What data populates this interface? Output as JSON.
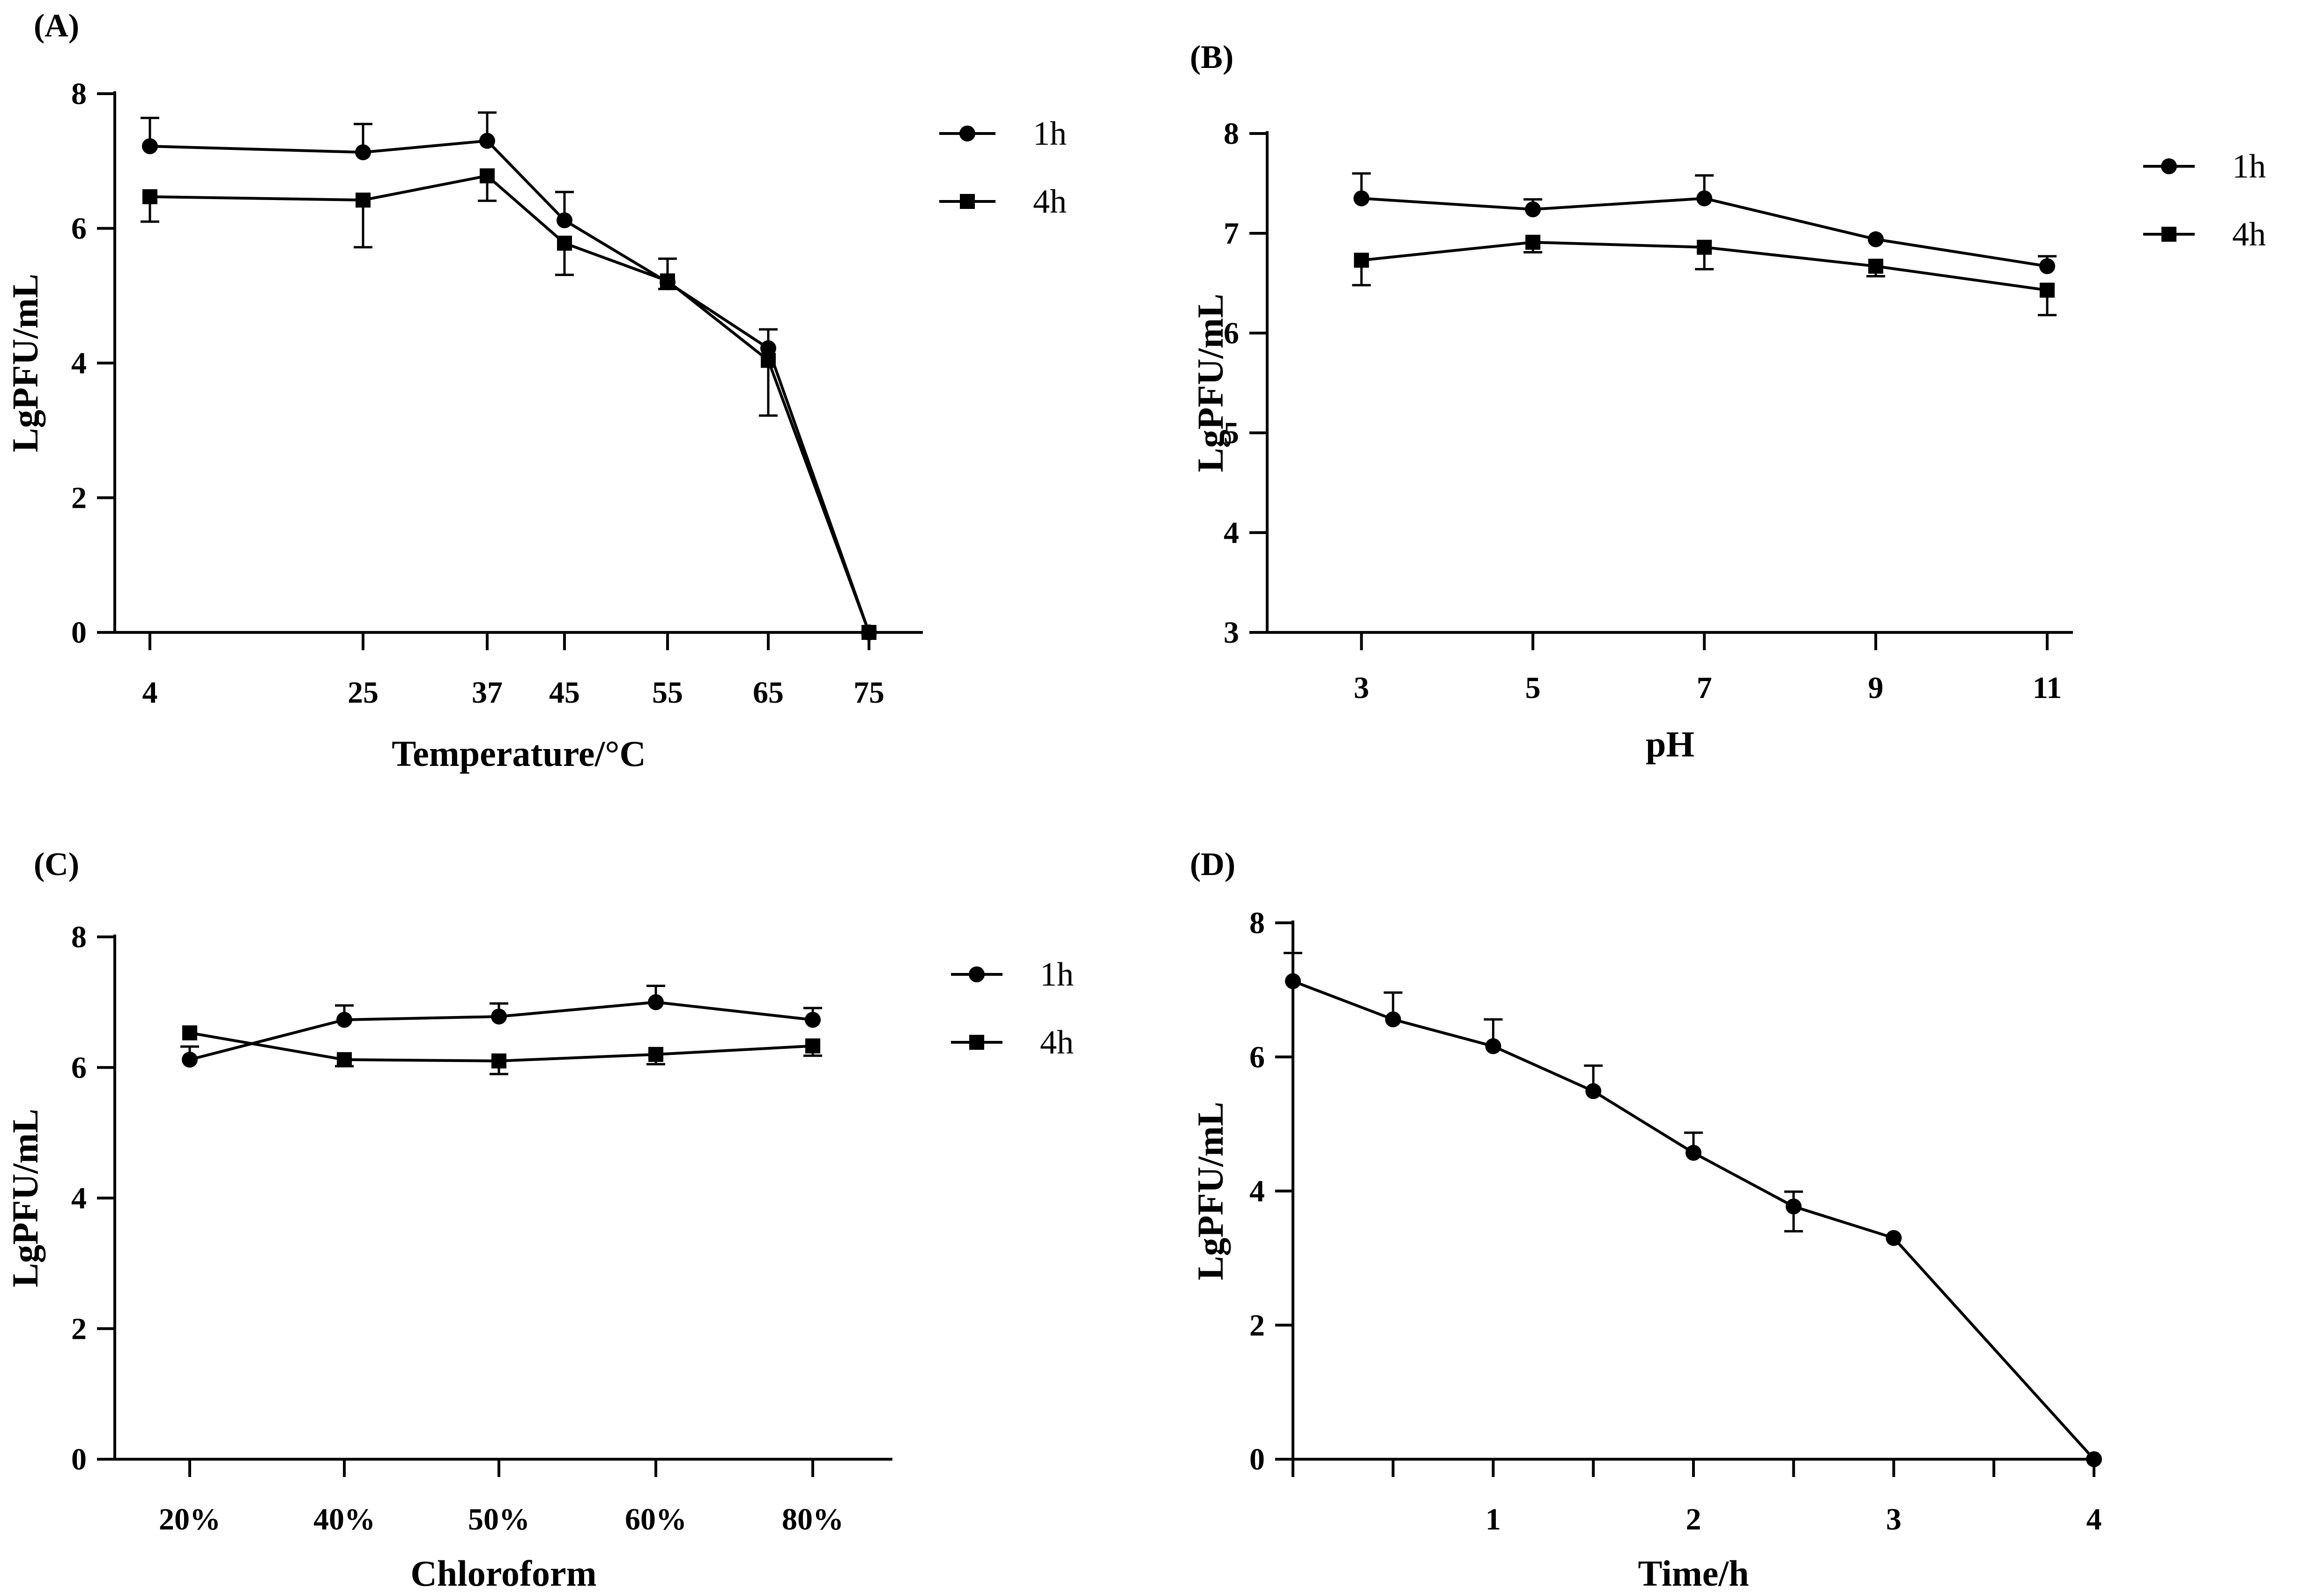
{
  "figure": {
    "panels": [
      {
        "label": "(A)"
      },
      {
        "label": "(B)"
      },
      {
        "label": "(C)"
      },
      {
        "label": "(D)"
      }
    ]
  },
  "chart_data": [
    {
      "type": "line",
      "panel": "(A)",
      "xlabel": "Temperature/°C",
      "ylabel": "LgPFU/mL",
      "x_scale": "categorical",
      "categories": [
        "4",
        "25",
        "37",
        "45",
        "55",
        "65",
        "75"
      ],
      "xlim": [
        -0.3,
        7.1
      ],
      "ylim": [
        0,
        8
      ],
      "yticks": [
        0,
        2,
        4,
        6,
        8
      ],
      "legend": "top-right",
      "series": [
        {
          "name": "1h",
          "marker": "circle",
          "values": [
            7.22,
            7.13,
            7.3,
            6.12,
            5.2,
            4.22,
            0.0
          ],
          "errors": [
            0.42,
            0.42,
            0.42,
            0.42,
            0.35,
            0.28,
            0.0
          ],
          "error_side": "up"
        },
        {
          "name": "4h",
          "marker": "square",
          "values": [
            6.47,
            6.42,
            6.78,
            5.78,
            5.22,
            4.04,
            0.0
          ],
          "errors": [
            0.37,
            0.7,
            0.37,
            0.47,
            0.12,
            0.82,
            0.0
          ],
          "error_side": "down"
        }
      ]
    },
    {
      "type": "line",
      "panel": "(B)",
      "xlabel": "pH",
      "ylabel": "LgPFU/mL",
      "x_scale": "linear",
      "x": [
        3,
        5,
        7,
        9,
        11
      ],
      "xticks": [
        3,
        5,
        7,
        9,
        11
      ],
      "xlim": [
        1.9,
        11.3
      ],
      "ylim": [
        3,
        8
      ],
      "yticks": [
        3,
        4,
        5,
        6,
        7,
        8
      ],
      "legend": "top-right",
      "series": [
        {
          "name": "1h",
          "marker": "circle",
          "values": [
            7.35,
            7.24,
            7.35,
            6.94,
            6.67
          ],
          "errors": [
            0.25,
            0.1,
            0.23,
            0.0,
            0.1
          ],
          "error_side": "up"
        },
        {
          "name": "4h",
          "marker": "square",
          "values": [
            6.73,
            6.91,
            6.86,
            6.67,
            6.43
          ],
          "errors": [
            0.25,
            0.1,
            0.22,
            0.1,
            0.25
          ],
          "error_side": "down"
        }
      ]
    },
    {
      "type": "line",
      "panel": "(C)",
      "xlabel": "Chloroform",
      "ylabel": "LgPFU/mL",
      "x_scale": "categorical",
      "categories": [
        "20%",
        "40%",
        "50%",
        "60%",
        "80%"
      ],
      "xlim": [
        -0.5,
        4.5
      ],
      "ylim": [
        0,
        8
      ],
      "yticks": [
        0,
        2,
        4,
        6,
        8
      ],
      "legend": "top-right",
      "series": [
        {
          "name": "1h",
          "marker": "circle",
          "values": [
            6.12,
            6.73,
            6.78,
            7.0,
            6.73
          ],
          "errors": [
            0.2,
            0.22,
            0.2,
            0.25,
            0.18
          ],
          "error_side": "up"
        },
        {
          "name": "4h",
          "marker": "square",
          "values": [
            6.53,
            6.12,
            6.1,
            6.2,
            6.33
          ],
          "errors": [
            0.0,
            0.1,
            0.2,
            0.15,
            0.15
          ],
          "error_side": "down"
        }
      ]
    },
    {
      "type": "line",
      "panel": "(D)",
      "xlabel": "Time/h",
      "ylabel": "LgPFU/mL",
      "x_scale": "linear",
      "x": [
        0,
        0.5,
        1,
        1.5,
        2,
        2.5,
        3,
        4
      ],
      "xticks": [
        0,
        0.5,
        1,
        1.5,
        2,
        2.5,
        3,
        3.5,
        4
      ],
      "xticklabels": [
        "",
        "",
        "1",
        "",
        "2",
        "",
        "3",
        "",
        "4"
      ],
      "xlim": [
        0,
        4
      ],
      "ylim": [
        0,
        8
      ],
      "yticks": [
        0,
        2,
        4,
        6,
        8
      ],
      "legend": "none",
      "series": [
        {
          "name": "",
          "marker": "circle",
          "values": [
            7.13,
            6.56,
            6.16,
            5.49,
            4.57,
            3.77,
            3.3,
            0.0
          ],
          "errors": [
            0.42,
            0.4,
            0.4,
            0.38,
            0.3,
            0.22,
            0.0,
            0.0
          ],
          "error_side": "up",
          "lower_errors": [
            0,
            0,
            0,
            0,
            0,
            0.37,
            0,
            0
          ]
        }
      ]
    }
  ]
}
